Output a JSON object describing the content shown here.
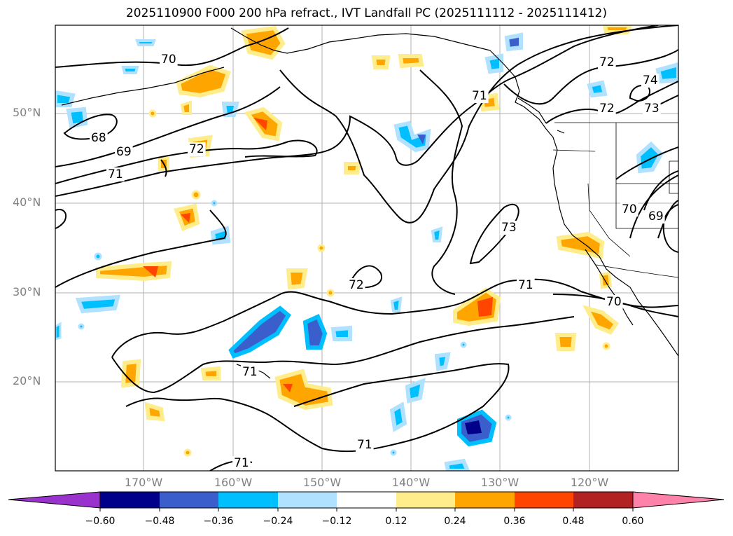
{
  "title": "2025110900 F000 200 hPa refract., IVT Landfall PC (2025111112 - 2025111412)",
  "latitude_labels": [
    "50°N",
    "40°N",
    "30°N",
    "20°N"
  ],
  "longitude_labels": [
    "170°W",
    "160°W",
    "150°W",
    "140°W",
    "130°W",
    "120°W"
  ],
  "contour_labels": [
    "70",
    "68",
    "69",
    "71",
    "72",
    "71",
    "72",
    "73",
    "72",
    "73",
    "74",
    "70",
    "69",
    "72",
    "71",
    "70",
    "71",
    "71",
    "71"
  ],
  "colorbar": {
    "tick_labels": [
      "−0.60",
      "−0.48",
      "−0.36",
      "−0.24",
      "−0.12",
      "0.12",
      "0.24",
      "0.36",
      "0.48",
      "0.60"
    ],
    "colors": [
      "#9a32cd",
      "#00008b",
      "#3a5fcd",
      "#00bfff",
      "#b0e2ff",
      "#ffffff",
      "#ffec8b",
      "#ffa500",
      "#ff4500",
      "#b22222",
      "#ff82ab"
    ]
  }
}
